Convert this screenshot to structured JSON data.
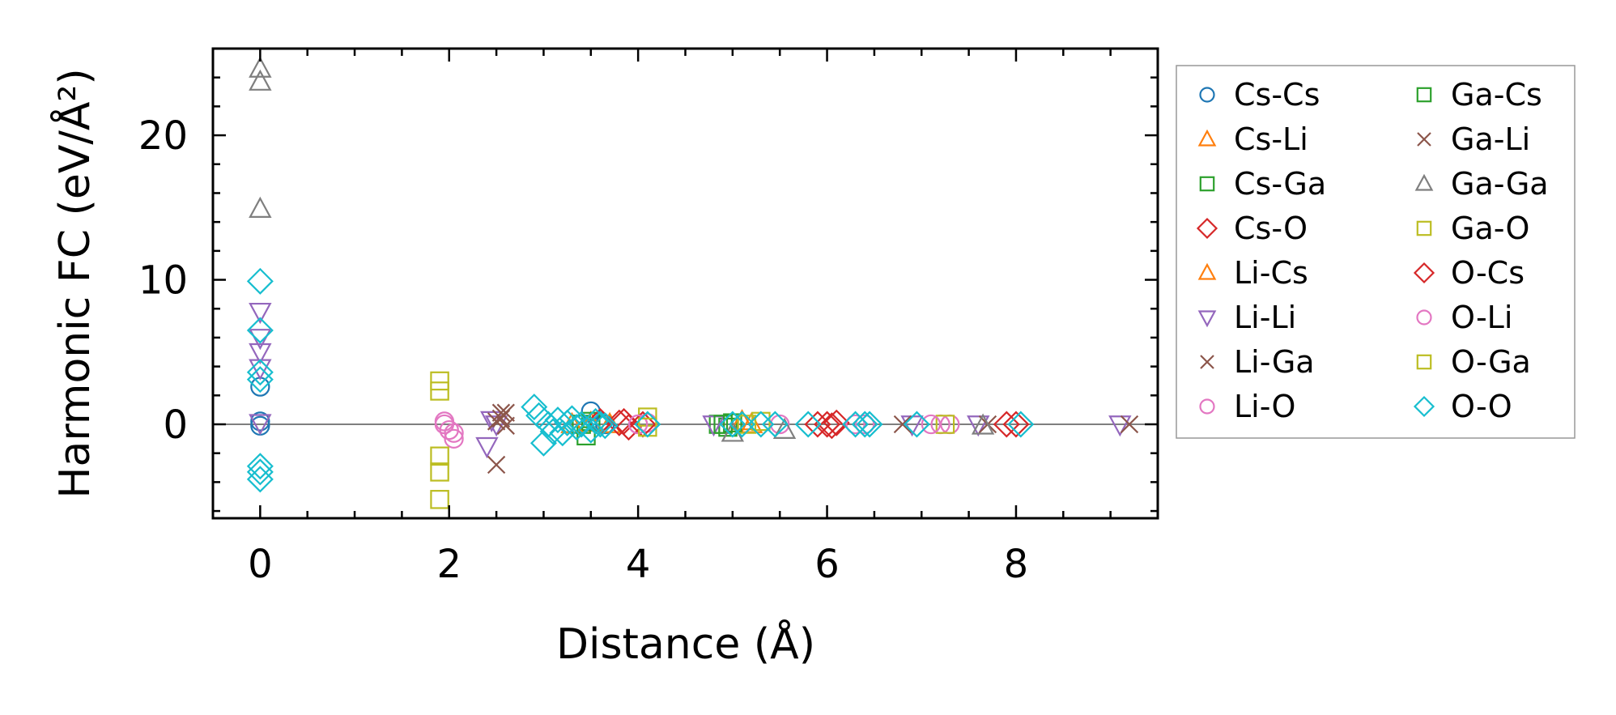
{
  "chart_data": {
    "type": "scatter",
    "title": "",
    "xlabel": "Distance (Å)",
    "ylabel": "Harmonic FC (eV/Å²)",
    "xlim": [
      -0.5,
      9.5
    ],
    "ylim": [
      -6.5,
      26
    ],
    "xticks": [
      0,
      2,
      4,
      6,
      8
    ],
    "yticks": [
      0,
      10,
      20
    ],
    "xtick_labels": [
      "0",
      "2",
      "4",
      "6",
      "8"
    ],
    "ytick_labels": [
      "0",
      "10",
      "20"
    ],
    "zero_line": true,
    "grid": false,
    "legend_position": "outside-right",
    "series": [
      {
        "name": "Cs-Cs",
        "marker": "circle",
        "color": "#1f77b4",
        "x": [
          0,
          0,
          0,
          3.5,
          3.6,
          3.65
        ],
        "y": [
          2.6,
          0.2,
          -0.1,
          0.9,
          0.2,
          0.0
        ]
      },
      {
        "name": "Cs-Li",
        "marker": "triangle-up",
        "color": "#ff7f0e",
        "x": [
          3.5,
          3.7,
          5.2
        ],
        "y": [
          0.1,
          0.0,
          0.0
        ]
      },
      {
        "name": "Cs-Ga",
        "marker": "square",
        "color": "#2ca02c",
        "x": [
          3.45,
          3.5,
          4.85,
          4.95
        ],
        "y": [
          -0.8,
          0.2,
          0.0,
          -0.2
        ]
      },
      {
        "name": "Cs-O",
        "marker": "diamond",
        "color": "#d62728",
        "x": [
          3.6,
          3.8,
          3.9,
          6.0,
          6.1,
          7.9
        ],
        "y": [
          0.2,
          0.1,
          -0.2,
          0.0,
          0.1,
          0.0
        ]
      },
      {
        "name": "Li-Cs",
        "marker": "triangle-up",
        "color": "#ff7f0e",
        "x": [
          3.3,
          5.1
        ],
        "y": [
          0.0,
          0.2
        ]
      },
      {
        "name": "Li-Li",
        "marker": "triangle-down",
        "color": "#9467bd",
        "x": [
          0,
          0,
          0,
          0,
          0,
          2.4,
          2.45,
          2.5,
          4.8,
          6.9,
          7.6,
          9.1
        ],
        "y": [
          7.8,
          6.0,
          5.0,
          3.9,
          0.1,
          -1.5,
          0.3,
          0.0,
          0.0,
          0.0,
          0.0,
          0.0
        ]
      },
      {
        "name": "Li-Ga",
        "marker": "x",
        "color": "#8c564b",
        "x": [
          2.5,
          2.55,
          2.6,
          2.5,
          6.8,
          7.7
        ],
        "y": [
          -2.8,
          0.4,
          0.8,
          0.2,
          0.0,
          0.0
        ]
      },
      {
        "name": "Li-O",
        "marker": "circle",
        "color": "#e377c2",
        "x": [
          1.95,
          2.0,
          2.05,
          4.0,
          4.1,
          5.5,
          6.3,
          6.4,
          7.2,
          7.3
        ],
        "y": [
          0.2,
          -0.4,
          -1.0,
          0.0,
          0.1,
          0.0,
          0.0,
          0.0,
          0.0,
          0.0
        ]
      },
      {
        "name": "Ga-Cs",
        "marker": "square",
        "color": "#2ca02c",
        "x": [
          3.4,
          4.9,
          5.0
        ],
        "y": [
          0.0,
          0.0,
          0.1
        ]
      },
      {
        "name": "Ga-Li",
        "marker": "x",
        "color": "#8c564b",
        "x": [
          2.55,
          2.6,
          9.2
        ],
        "y": [
          0.8,
          -0.1,
          0.0
        ]
      },
      {
        "name": "Ga-Ga",
        "marker": "triangle-up",
        "color": "#7f7f7f",
        "x": [
          0,
          0,
          0,
          5.0,
          5.55,
          7.65
        ],
        "y": [
          24.6,
          23.7,
          14.9,
          -0.6,
          -0.4,
          -0.1
        ]
      },
      {
        "name": "Ga-O",
        "marker": "square",
        "color": "#bcbd22",
        "x": [
          1.9,
          1.9,
          1.9,
          1.9,
          1.9,
          4.1,
          5.3,
          7.25
        ],
        "y": [
          3.0,
          2.3,
          -2.2,
          -3.3,
          -5.2,
          0.5,
          0.2,
          0.0
        ]
      },
      {
        "name": "O-Cs",
        "marker": "diamond",
        "color": "#d62728",
        "x": [
          3.85,
          4.05,
          5.9,
          6.05,
          8.0
        ],
        "y": [
          0.2,
          0.0,
          0.0,
          -0.1,
          0.0
        ]
      },
      {
        "name": "O-Li",
        "marker": "circle",
        "color": "#e377c2",
        "x": [
          1.95,
          2.05,
          4.0,
          7.1
        ],
        "y": [
          0.0,
          -0.6,
          0.0,
          0.0
        ]
      },
      {
        "name": "O-Ga",
        "marker": "square",
        "color": "#bcbd22",
        "x": [
          4.1,
          5.15
        ],
        "y": [
          -0.2,
          0.0
        ]
      },
      {
        "name": "O-O",
        "marker": "diamond",
        "color": "#17becf",
        "x": [
          0,
          0,
          0,
          0,
          0,
          0,
          0,
          2.9,
          2.95,
          3.0,
          3.05,
          3.1,
          3.15,
          3.2,
          3.25,
          3.3,
          3.35,
          3.4,
          3.5,
          3.55,
          3.6,
          3.65,
          4.1,
          5.0,
          5.1,
          5.3,
          5.45,
          5.8,
          6.3,
          6.4,
          6.45,
          6.95,
          8.05
        ],
        "y": [
          9.9,
          6.5,
          3.6,
          3.1,
          -2.9,
          -3.3,
          -3.8,
          1.2,
          0.6,
          -1.3,
          0.0,
          -0.5,
          0.3,
          -0.6,
          0.1,
          0.4,
          -0.2,
          0.0,
          -0.4,
          0.2,
          0.0,
          -0.1,
          0.0,
          0.0,
          0.0,
          0.0,
          0.0,
          0.0,
          0.0,
          0.0,
          0.0,
          0.0,
          0.0
        ]
      }
    ]
  }
}
